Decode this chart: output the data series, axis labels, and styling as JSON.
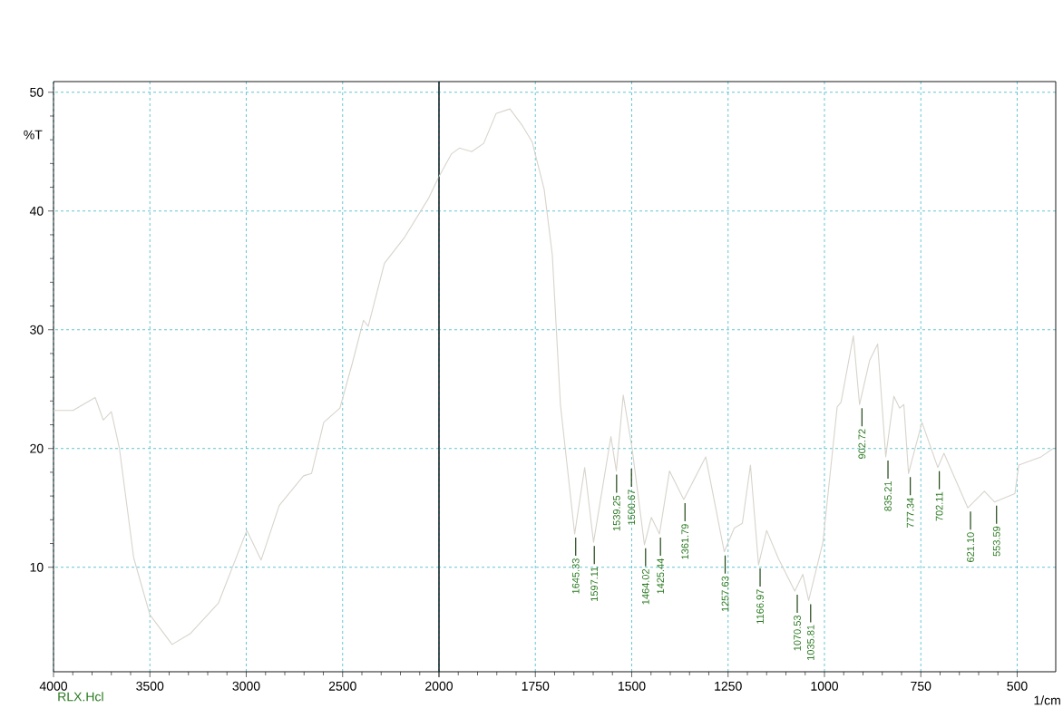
{
  "chart_data": [
    {
      "type": "line",
      "ylabel": "%T",
      "xlim": [
        4000,
        2000
      ],
      "ylim": [
        1.2,
        50.9
      ],
      "xticks": [
        4000,
        3500,
        3000,
        2500,
        2000
      ],
      "yticks": [
        10,
        20,
        30,
        40,
        50
      ],
      "grid": true,
      "annotations": [
        "RLX.Hcl"
      ],
      "series": [
        {
          "color": "#d8d4cc",
          "x": [
            4000,
            3899,
            3784,
            3742,
            3700,
            3658,
            3584,
            3500,
            3385,
            3291,
            3144,
            2997,
            2923,
            2829,
            2703,
            2661,
            2598,
            2514,
            2451,
            2392,
            2367,
            2283,
            2178,
            2053,
            2000
          ],
          "values": [
            23.2,
            23.2,
            24.3,
            22.4,
            23.1,
            20.0,
            10.8,
            6.0,
            3.5,
            4.4,
            7.0,
            13.1,
            10.6,
            15.2,
            17.7,
            17.9,
            22.2,
            23.4,
            27.1,
            30.8,
            30.3,
            35.6,
            37.8,
            41.1,
            42.9
          ]
        }
      ]
    },
    {
      "type": "line",
      "xlabel": "1/cm",
      "xlim": [
        2000,
        400
      ],
      "ylim": [
        1.2,
        50.9
      ],
      "xticks": [
        {
          "value": 2000,
          "label": null
        },
        1750,
        1500,
        1250,
        1000,
        750,
        500
      ],
      "yticks": [
        10,
        20,
        30,
        40,
        50
      ],
      "grid": true,
      "tick_labels": "x",
      "annotations": [
        {
          "text": "1645.33",
          "x": 1645.33,
          "y": 12.8
        },
        {
          "text": "1597.11",
          "x": 1597.11,
          "y": 12.1
        },
        {
          "text": "1539.25",
          "x": 1539.25,
          "y": 18.1
        },
        {
          "text": "1500.67",
          "x": 1500.67,
          "y": 18.6
        },
        {
          "text": "1464.02",
          "x": 1464.02,
          "y": 11.9
        },
        {
          "text": "1425.44",
          "x": 1425.44,
          "y": 12.8
        },
        {
          "text": "1361.79",
          "x": 1361.79,
          "y": 15.7
        },
        {
          "text": "1257.63",
          "x": 1257.63,
          "y": 11.3
        },
        {
          "text": "1166.97",
          "x": 1166.97,
          "y": 10.2
        },
        {
          "text": "1070.53",
          "x": 1070.53,
          "y": 8.0
        },
        {
          "text": "1035.81",
          "x": 1035.81,
          "y": 7.2
        },
        {
          "text": "902.72",
          "x": 902.72,
          "y": 23.7
        },
        {
          "text": "835.21",
          "x": 835.21,
          "y": 19.3
        },
        {
          "text": "777.34",
          "x": 777.34,
          "y": 17.9
        },
        {
          "text": "702.11",
          "x": 702.11,
          "y": 18.4
        },
        {
          "text": "621.10",
          "x": 621.1,
          "y": 15.0
        },
        {
          "text": "553.59",
          "x": 553.59,
          "y": 15.5
        }
      ],
      "series": [
        {
          "color": "#d8d4cc",
          "x": [
            2000,
            1968,
            1947,
            1915,
            1884,
            1852,
            1816,
            1784,
            1758,
            1727,
            1706,
            1685,
            1648,
            1622,
            1599,
            1554,
            1540,
            1522,
            1499,
            1467,
            1449,
            1428,
            1402,
            1365,
            1308,
            1260,
            1234,
            1213,
            1192,
            1171,
            1150,
            1119,
            1077,
            1056,
            1041,
            1004,
            967,
            957,
            925,
            909,
            883,
            862,
            841,
            820,
            805,
            794,
            782,
            747,
            706,
            690,
            628,
            585,
            559,
            506,
            496,
            438,
            407
          ],
          "values": [
            42.9,
            44.8,
            45.3,
            45.0,
            45.7,
            48.2,
            48.6,
            47.2,
            45.8,
            41.8,
            36.3,
            23.7,
            12.8,
            18.4,
            12.1,
            21.0,
            18.1,
            24.5,
            20.0,
            11.9,
            14.2,
            12.8,
            18.1,
            15.7,
            19.3,
            11.3,
            13.3,
            13.7,
            18.6,
            10.2,
            13.1,
            10.7,
            8.0,
            9.4,
            7.2,
            12.1,
            23.5,
            23.9,
            29.5,
            23.7,
            27.4,
            28.8,
            19.3,
            24.4,
            23.4,
            23.7,
            17.9,
            22.2,
            18.4,
            19.6,
            15.0,
            16.4,
            15.5,
            16.2,
            18.6,
            19.3,
            20.0
          ]
        }
      ]
    }
  ]
}
